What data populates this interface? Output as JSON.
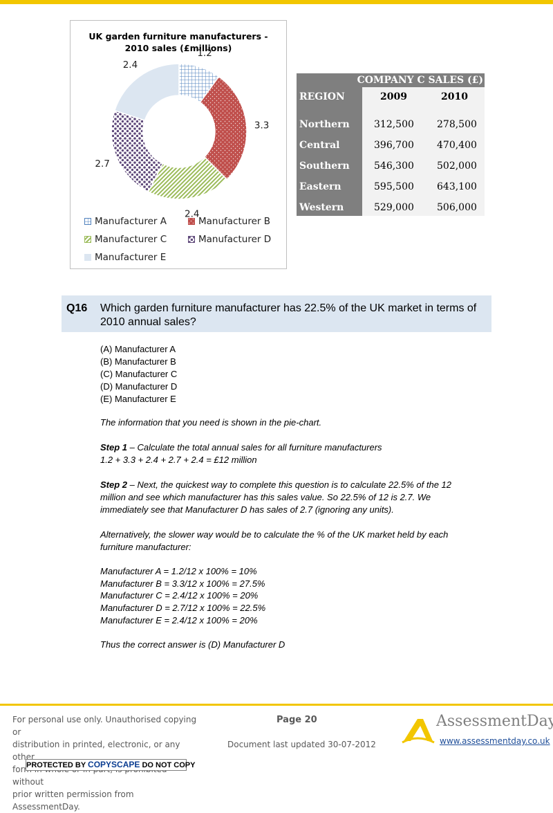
{
  "chart_data": {
    "type": "pie",
    "variant": "doughnut",
    "title_lines": [
      "UK garden furniture manufacturers -",
      "2010 sales  (£millions)"
    ],
    "categories": [
      "Manufacturer A",
      "Manufacturer B",
      "Manufacturer C",
      "Manufacturer D",
      "Manufacturer E"
    ],
    "values": [
      1.2,
      3.3,
      2.4,
      2.7,
      2.4
    ],
    "data_labels": [
      "1.2",
      "3.3",
      "2.4",
      "2.7",
      "2.4"
    ],
    "legend_position": "bottom",
    "colors": {
      "Manufacturer A": "#4f81bd",
      "Manufacturer B": "#c0504d",
      "Manufacturer C": "#9bbb59",
      "Manufacturer D": "#604a7b",
      "Manufacturer E": "#dce6f1"
    },
    "patterns": {
      "Manufacturer A": "grid",
      "Manufacturer B": "speckle",
      "Manufacturer C": "diagonal",
      "Manufacturer D": "dots",
      "Manufacturer E": "solid"
    }
  },
  "sales_table": {
    "title": "COMPANY C SALES (£)",
    "columns": [
      "REGION",
      "2009",
      "2010"
    ],
    "rows": [
      [
        "Northern",
        "312,500",
        "278,500"
      ],
      [
        "Central",
        "396,700",
        "470,400"
      ],
      [
        "Southern",
        "546,300",
        "502,000"
      ],
      [
        "Eastern",
        "595,500",
        "643,100"
      ],
      [
        "Western",
        "529,000",
        "506,000"
      ]
    ]
  },
  "question": {
    "number": "Q16",
    "text": "Which garden furniture manufacturer has 22.5% of the UK market in terms of 2010 annual sales?",
    "options": [
      "(A) Manufacturer A",
      "(B) Manufacturer B",
      "(C) Manufacturer C",
      "(D) Manufacturer D",
      "(E) Manufacturer E"
    ]
  },
  "explanation": {
    "intro": "The information that you need is shown in the pie-chart.",
    "step1_label": "Step 1",
    "step1_text": " – Calculate the total annual sales for all furniture manufacturers",
    "step1_calc": "1.2 + 3.3 + 2.4 + 2.7 + 2.4 = £12 million",
    "step2_label": "Step 2",
    "step2_line1": " – Next, the quickest way to complete this question is to calculate 22.5% of the 12",
    "step2_line2": "million and see which manufacturer has this sales value. So 22.5% of 12 is 2.7. We",
    "step2_line3": "immediately see that Manufacturer D has sales of 2.7 (ignoring any units).",
    "alt_line1": "Alternatively, the slower way would be to calculate the % of the UK market held by each",
    "alt_line2": "furniture manufacturer:",
    "calcs": [
      "Manufacturer A = 1.2/12 x 100% = 10%",
      "Manufacturer B = 3.3/12 x 100% = 27.5%",
      "Manufacturer C = 2.4/12 x 100% = 20%",
      "Manufacturer D = 2.7/12 x 100% = 22.5%",
      "Manufacturer E = 2.4/12 x 100% = 20%"
    ],
    "conclusion": "Thus the correct answer is (D) Manufacturer D"
  },
  "footer": {
    "notice_lines": [
      "For personal use only. Unauthorised copying or",
      "distribution in printed, electronic, or any other",
      "form in whole or in part, is prohibited without",
      "prior written permission from AssessmentDay."
    ],
    "copyscape_pre": "PROTECTED BY ",
    "copyscape_brand": "COPYSCAPE",
    "copyscape_post": " DO NOT COPY",
    "page": "Page 20",
    "updated": "Document last updated 30-07-2012",
    "logo_text": "AssessmentDay",
    "logo_url": "www.assessmentday.co.uk"
  }
}
